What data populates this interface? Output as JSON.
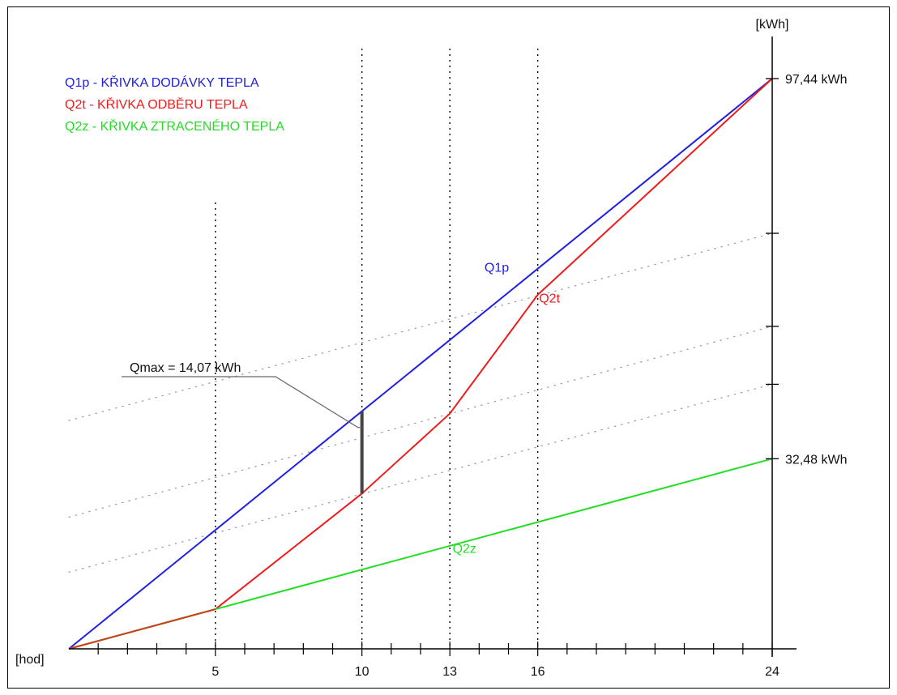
{
  "chart_data": {
    "type": "line",
    "xlabel": "[hod]",
    "ylabel": "[kWh]",
    "xlim": [
      0,
      24
    ],
    "ylim": [
      0,
      97.44
    ],
    "x_ticks_labeled": [
      5,
      10,
      13,
      16,
      24
    ],
    "x_minor_step": 1,
    "y_axis_position": "right",
    "vertical_guides": [
      5,
      10,
      13,
      16
    ],
    "legend": {
      "placement": "top-left",
      "entries": [
        {
          "text": "Q1p - KŘIVKA DODÁVKY TEPLA",
          "color": "#2020e0"
        },
        {
          "text": "Q2t - KŘIVKA ODBĚRU TEPLA",
          "color": "#ee1c1c"
        },
        {
          "text": "Q2z - KŘIVKA ZTRACENÉHO TEPLA",
          "color": "#22dd22"
        }
      ]
    },
    "series": [
      {
        "name": "Q1p",
        "color": "#2020e0",
        "x": [
          0,
          24
        ],
        "y": [
          0,
          97.44
        ]
      },
      {
        "name": "Q2t",
        "color": "#ee1c1c",
        "x": [
          0,
          5,
          10,
          13,
          16,
          24
        ],
        "y": [
          0,
          6.77,
          26.53,
          40.2,
          60.5,
          97.44
        ]
      },
      {
        "name": "Q2z",
        "color": "#22dd22",
        "x": [
          0,
          5,
          24
        ],
        "y": [
          0,
          6.77,
          32.48
        ]
      }
    ],
    "parallel_lines": [
      {
        "from": [
          0,
          39.0
        ],
        "to": [
          24,
          71.0
        ]
      },
      {
        "from": [
          0,
          22.5
        ],
        "to": [
          24,
          55.1
        ]
      },
      {
        "from": [
          0,
          13.1
        ],
        "to": [
          24,
          45.2
        ]
      }
    ],
    "right_axis_ticks": [
      32.48,
      45.2,
      55.1,
      71.0,
      97.44
    ],
    "value_labels": [
      {
        "text": "97,44 kWh",
        "y": 97.44
      },
      {
        "text": "32,48 kWh",
        "y": 32.48
      }
    ],
    "series_labels": [
      {
        "text": "Q1p",
        "x": 14.6,
        "y": 64.4,
        "color": "#2020e0"
      },
      {
        "text": "Q2t",
        "x": 16.4,
        "y": 59.2,
        "color": "#ee1c1c"
      },
      {
        "text": "Q2z",
        "x": 13.5,
        "y": 16.4,
        "color": "#22dd22"
      }
    ],
    "annotation": {
      "text": "Qmax = 14,07 kWh",
      "x": 10,
      "y_from": 26.53,
      "y_to": 40.6
    }
  }
}
